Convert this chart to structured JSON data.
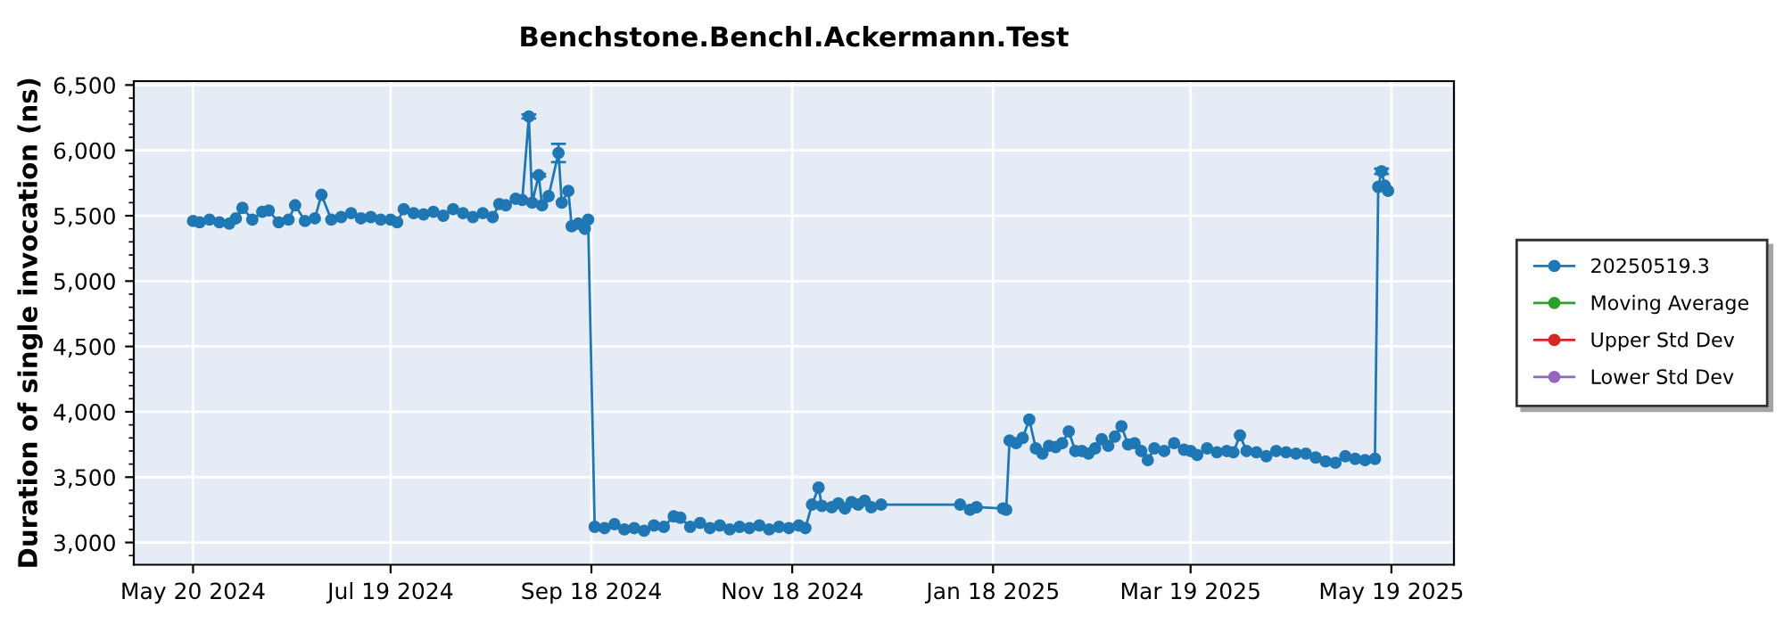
{
  "chart_data": {
    "type": "line",
    "title": "Benchstone.BenchI.Ackermann.Test",
    "ylabel": "Duration of single invocation (ns)",
    "x": [
      "2024-05-20",
      "2024-05-22",
      "2024-05-25",
      "2024-05-28",
      "2024-05-31",
      "2024-06-02",
      "2024-06-04",
      "2024-06-07",
      "2024-06-10",
      "2024-06-12",
      "2024-06-15",
      "2024-06-18",
      "2024-06-20",
      "2024-06-23",
      "2024-06-26",
      "2024-06-28",
      "2024-07-01",
      "2024-07-04",
      "2024-07-07",
      "2024-07-10",
      "2024-07-13",
      "2024-07-16",
      "2024-07-19",
      "2024-07-21",
      "2024-07-23",
      "2024-07-26",
      "2024-07-29",
      "2024-08-01",
      "2024-08-04",
      "2024-08-07",
      "2024-08-10",
      "2024-08-13",
      "2024-08-16",
      "2024-08-19",
      "2024-08-21",
      "2024-08-23",
      "2024-08-26",
      "2024-08-28",
      "2024-08-30",
      "2024-08-31",
      "2024-09-02",
      "2024-09-03",
      "2024-09-05",
      "2024-09-08",
      "2024-09-09",
      "2024-09-11",
      "2024-09-12",
      "2024-09-14",
      "2024-09-16",
      "2024-09-17",
      "2024-09-19",
      "2024-09-22",
      "2024-09-25",
      "2024-09-28",
      "2024-10-01",
      "2024-10-04",
      "2024-10-07",
      "2024-10-10",
      "2024-10-13",
      "2024-10-15",
      "2024-10-18",
      "2024-10-21",
      "2024-10-24",
      "2024-10-27",
      "2024-10-30",
      "2024-11-02",
      "2024-11-05",
      "2024-11-08",
      "2024-11-11",
      "2024-11-14",
      "2024-11-17",
      "2024-11-20",
      "2024-11-22",
      "2024-11-24",
      "2024-11-26",
      "2024-11-27",
      "2024-11-30",
      "2024-12-02",
      "2024-12-04",
      "2024-12-06",
      "2024-12-08",
      "2024-12-10",
      "2024-12-12",
      "2024-12-15",
      "2025-01-08",
      "2025-01-11",
      "2025-01-13",
      "2025-01-21",
      "2025-01-22",
      "2025-01-23",
      "2025-01-25",
      "2025-01-27",
      "2025-01-29",
      "2025-01-31",
      "2025-02-02",
      "2025-02-04",
      "2025-02-06",
      "2025-02-08",
      "2025-02-10",
      "2025-02-12",
      "2025-02-14",
      "2025-02-16",
      "2025-02-18",
      "2025-02-20",
      "2025-02-22",
      "2025-02-24",
      "2025-02-26",
      "2025-02-28",
      "2025-03-02",
      "2025-03-04",
      "2025-03-06",
      "2025-03-08",
      "2025-03-11",
      "2025-03-14",
      "2025-03-17",
      "2025-03-19",
      "2025-03-21",
      "2025-03-24",
      "2025-03-27",
      "2025-03-30",
      "2025-04-01",
      "2025-04-03",
      "2025-04-05",
      "2025-04-08",
      "2025-04-11",
      "2025-04-14",
      "2025-04-17",
      "2025-04-20",
      "2025-04-23",
      "2025-04-26",
      "2025-04-29",
      "2025-05-02",
      "2025-05-05",
      "2025-05-08",
      "2025-05-11",
      "2025-05-14",
      "2025-05-15",
      "2025-05-16",
      "2025-05-17",
      "2025-05-18"
    ],
    "series": [
      {
        "name": "20250519.3",
        "color": "#1f77b4",
        "values": [
          5460,
          5450,
          5470,
          5450,
          5440,
          5480,
          5560,
          5470,
          5530,
          5540,
          5450,
          5470,
          5580,
          5460,
          5480,
          5660,
          5470,
          5490,
          5520,
          5480,
          5490,
          5470,
          5470,
          5450,
          5550,
          5520,
          5510,
          5530,
          5500,
          5550,
          5520,
          5490,
          5520,
          5490,
          5590,
          5580,
          5630,
          5620,
          6260,
          5600,
          5810,
          5580,
          5650,
          5980,
          5600,
          5690,
          5420,
          5440,
          5400,
          5470,
          3120,
          3110,
          3140,
          3100,
          3110,
          3090,
          3130,
          3120,
          3200,
          3190,
          3120,
          3150,
          3110,
          3130,
          3100,
          3120,
          3110,
          3130,
          3100,
          3120,
          3110,
          3130,
          3110,
          3290,
          3420,
          3280,
          3270,
          3300,
          3260,
          3310,
          3290,
          3320,
          3270,
          3290,
          3290,
          3250,
          3270,
          3260,
          3250,
          3780,
          3760,
          3800,
          3940,
          3720,
          3680,
          3740,
          3730,
          3760,
          3850,
          3700,
          3700,
          3680,
          3720,
          3790,
          3740,
          3810,
          3890,
          3750,
          3760,
          3700,
          3630,
          3720,
          3700,
          3760,
          3710,
          3700,
          3670,
          3720,
          3690,
          3700,
          3690,
          3820,
          3700,
          3690,
          3660,
          3700,
          3690,
          3680,
          3680,
          3650,
          3620,
          3610,
          3660,
          3640,
          3630,
          3640,
          5720,
          5840,
          5730,
          5690
        ],
        "errors": [
          null,
          null,
          null,
          null,
          null,
          null,
          null,
          null,
          null,
          null,
          null,
          null,
          null,
          null,
          null,
          null,
          null,
          null,
          null,
          null,
          null,
          null,
          null,
          null,
          null,
          null,
          null,
          null,
          null,
          null,
          null,
          null,
          null,
          null,
          null,
          null,
          null,
          null,
          15,
          null,
          10,
          null,
          null,
          70,
          null,
          null,
          null,
          null,
          null,
          null,
          null,
          null,
          null,
          null,
          null,
          null,
          null,
          null,
          null,
          null,
          null,
          null,
          null,
          null,
          null,
          null,
          null,
          null,
          null,
          null,
          null,
          null,
          null,
          null,
          null,
          null,
          null,
          null,
          null,
          null,
          null,
          null,
          null,
          null,
          null,
          null,
          null,
          null,
          null,
          null,
          null,
          null,
          null,
          null,
          null,
          null,
          null,
          null,
          null,
          null,
          null,
          null,
          null,
          null,
          null,
          null,
          null,
          null,
          null,
          null,
          null,
          null,
          null,
          null,
          null,
          null,
          null,
          null,
          null,
          null,
          null,
          null,
          null,
          null,
          null,
          null,
          null,
          null,
          null,
          null,
          null,
          null,
          null,
          null,
          null,
          null,
          null,
          20,
          null,
          null
        ]
      },
      {
        "name": "Moving Average",
        "color": "#2ca02c",
        "values": [
          null,
          null,
          null,
          null,
          null,
          null,
          null,
          null,
          null,
          null,
          null,
          null,
          null,
          null,
          null,
          null,
          null,
          null,
          null,
          null,
          null,
          null,
          null,
          null,
          null,
          null,
          null,
          null,
          null,
          null,
          null,
          null,
          null,
          null,
          null,
          null,
          null,
          null,
          null,
          null,
          null,
          null,
          null,
          null,
          null,
          null,
          null,
          null,
          null,
          null,
          null,
          null,
          null,
          null,
          null,
          null,
          null,
          null,
          null,
          null,
          null,
          null,
          null,
          null,
          null,
          null,
          null,
          null,
          null,
          null,
          null,
          null,
          null,
          null,
          null,
          null,
          null,
          null,
          null,
          null,
          null,
          null,
          null,
          null,
          null,
          null,
          null,
          null,
          null,
          null,
          null,
          null,
          null,
          null,
          null,
          null,
          null,
          null,
          null,
          null,
          null,
          null,
          null,
          null,
          null,
          null,
          null,
          null,
          null,
          null,
          null,
          null,
          null,
          null,
          null,
          null,
          null,
          null,
          null,
          null,
          null,
          null,
          null,
          null,
          null,
          null,
          null,
          null,
          null,
          null,
          null,
          null,
          null,
          null,
          null,
          null,
          null,
          null,
          null,
          null
        ]
      },
      {
        "name": "Upper Std Dev",
        "color": "#d62728",
        "values": [
          null,
          null,
          null,
          null,
          null,
          null,
          null,
          null,
          null,
          null,
          null,
          null,
          null,
          null,
          null,
          null,
          null,
          null,
          null,
          null,
          null,
          null,
          null,
          null,
          null,
          null,
          null,
          null,
          null,
          null,
          null,
          null,
          null,
          null,
          null,
          null,
          null,
          null,
          null,
          null,
          null,
          null,
          null,
          null,
          null,
          null,
          null,
          null,
          null,
          null,
          null,
          null,
          null,
          null,
          null,
          null,
          null,
          null,
          null,
          null,
          null,
          null,
          null,
          null,
          null,
          null,
          null,
          null,
          null,
          null,
          null,
          null,
          null,
          null,
          null,
          null,
          null,
          null,
          null,
          null,
          null,
          null,
          null,
          null,
          null,
          null,
          null,
          null,
          null,
          null,
          null,
          null,
          null,
          null,
          null,
          null,
          null,
          null,
          null,
          null,
          null,
          null,
          null,
          null,
          null,
          null,
          null,
          null,
          null,
          null,
          null,
          null,
          null,
          null,
          null,
          null,
          null,
          null,
          null,
          null,
          null,
          null,
          null,
          null,
          null,
          null,
          null,
          null,
          null,
          null,
          null,
          null,
          null,
          null,
          null,
          null,
          null,
          null,
          null,
          null
        ]
      },
      {
        "name": "Lower Std Dev",
        "color": "#9467bd",
        "values": [
          null,
          null,
          null,
          null,
          null,
          null,
          null,
          null,
          null,
          null,
          null,
          null,
          null,
          null,
          null,
          null,
          null,
          null,
          null,
          null,
          null,
          null,
          null,
          null,
          null,
          null,
          null,
          null,
          null,
          null,
          null,
          null,
          null,
          null,
          null,
          null,
          null,
          null,
          null,
          null,
          null,
          null,
          null,
          null,
          null,
          null,
          null,
          null,
          null,
          null,
          null,
          null,
          null,
          null,
          null,
          null,
          null,
          null,
          null,
          null,
          null,
          null,
          null,
          null,
          null,
          null,
          null,
          null,
          null,
          null,
          null,
          null,
          null,
          null,
          null,
          null,
          null,
          null,
          null,
          null,
          null,
          null,
          null,
          null,
          null,
          null,
          null,
          null,
          null,
          null,
          null,
          null,
          null,
          null,
          null,
          null,
          null,
          null,
          null,
          null,
          null,
          null,
          null,
          null,
          null,
          null,
          null,
          null,
          null,
          null,
          null,
          null,
          null,
          null,
          null,
          null,
          null,
          null,
          null,
          null,
          null,
          null,
          null,
          null,
          null,
          null,
          null,
          null,
          null,
          null,
          null,
          null,
          null,
          null,
          null,
          null,
          null,
          null,
          null,
          null
        ]
      }
    ],
    "xlim": [
      "2024-05-02",
      "2025-06-07"
    ],
    "xticks": [
      {
        "value": "2024-05-20",
        "label": "May 20 2024"
      },
      {
        "value": "2024-07-19",
        "label": "Jul 19 2024"
      },
      {
        "value": "2024-09-18",
        "label": "Sep 18 2024"
      },
      {
        "value": "2024-11-18",
        "label": "Nov 18 2024"
      },
      {
        "value": "2025-01-18",
        "label": "Jan 18 2025"
      },
      {
        "value": "2025-03-19",
        "label": "Mar 19 2025"
      },
      {
        "value": "2025-05-19",
        "label": "May 19 2025"
      }
    ],
    "ylim": [
      2830,
      6530
    ],
    "yticks": [
      {
        "value": 3000,
        "label": "3,000"
      },
      {
        "value": 3500,
        "label": "3,500"
      },
      {
        "value": 4000,
        "label": "4,000"
      },
      {
        "value": 4500,
        "label": "4,500"
      },
      {
        "value": 5000,
        "label": "5,000"
      },
      {
        "value": 5500,
        "label": "5,500"
      },
      {
        "value": 6000,
        "label": "6,000"
      },
      {
        "value": 6500,
        "label": "6,500"
      }
    ],
    "grid": true,
    "legend": "right",
    "marker": "circle",
    "line_style": "solid"
  }
}
